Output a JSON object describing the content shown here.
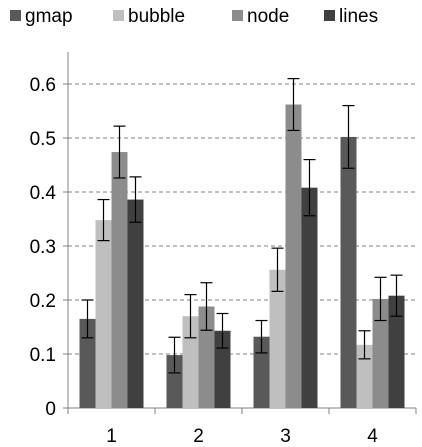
{
  "chart_data": {
    "type": "bar",
    "categories": [
      "1",
      "2",
      "3",
      "4"
    ],
    "series": [
      {
        "name": "gmap",
        "color": "#595959",
        "values": [
          0.165,
          0.098,
          0.132,
          0.502
        ],
        "errors": [
          0.035,
          0.033,
          0.03,
          0.058
        ]
      },
      {
        "name": "bubble",
        "color": "#BFBFBF",
        "values": [
          0.348,
          0.17,
          0.256,
          0.117
        ],
        "errors": [
          0.038,
          0.04,
          0.04,
          0.026
        ]
      },
      {
        "name": "node",
        "color": "#8C8C8C",
        "values": [
          0.474,
          0.188,
          0.562,
          0.202
        ],
        "errors": [
          0.048,
          0.044,
          0.048,
          0.04
        ]
      },
      {
        "name": "lines",
        "color": "#404040",
        "values": [
          0.386,
          0.143,
          0.408,
          0.208
        ],
        "errors": [
          0.042,
          0.032,
          0.052,
          0.038
        ]
      }
    ],
    "ylim": [
      0,
      0.65
    ],
    "yticks": [
      "0",
      "0.1",
      "0.2",
      "0.3",
      "0.4",
      "0.5",
      "0.6"
    ],
    "title": "",
    "xlabel": "",
    "ylabel": "",
    "grid": "horizontal dashed",
    "legend_position": "top"
  }
}
